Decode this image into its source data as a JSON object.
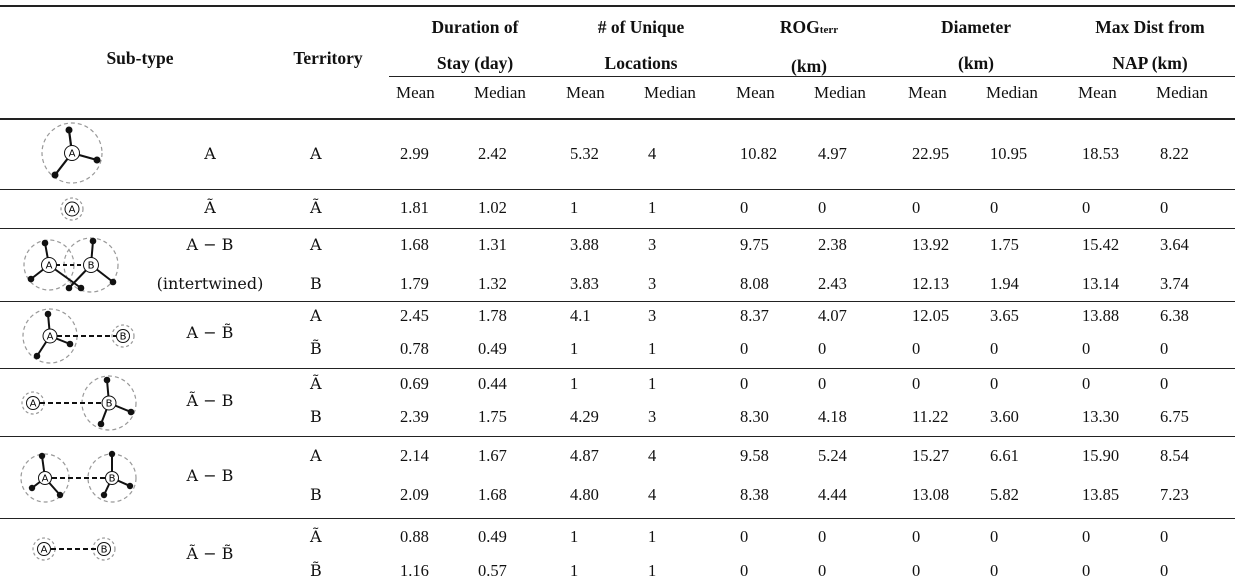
{
  "headers": {
    "subtype": "Sub-type",
    "territory": "Territory",
    "groups": [
      {
        "line1": "Duration of",
        "line2": "Stay (day)"
      },
      {
        "line1": "# of Unique",
        "line2": "Locations"
      },
      {
        "line1": "ROG",
        "line1_sub": "terr",
        "line2": "(km)"
      },
      {
        "line1": "Diameter",
        "line2": "(km)"
      },
      {
        "line1": "Max Dist from",
        "line2": "NAP (km)"
      }
    ],
    "mean": "Mean",
    "median": "Median"
  },
  "groups": [
    {
      "subtype": "A",
      "subtype2": "",
      "rows": [
        {
          "territory": "A",
          "values": [
            "2.99",
            "2.42",
            "5.32",
            "4",
            "10.82",
            "4.97",
            "22.95",
            "10.95",
            "18.53",
            "8.22"
          ]
        }
      ]
    },
    {
      "subtype": "Ã",
      "subtype2": "",
      "rows": [
        {
          "territory": "Ã",
          "values": [
            "1.81",
            "1.02",
            "1",
            "1",
            "0",
            "0",
            "0",
            "0",
            "0",
            "0"
          ]
        }
      ]
    },
    {
      "subtype": "A − B",
      "subtype2": "(intertwined)",
      "rows": [
        {
          "territory": "A",
          "values": [
            "1.68",
            "1.31",
            "3.88",
            "3",
            "9.75",
            "2.38",
            "13.92",
            "1.75",
            "15.42",
            "3.64"
          ]
        },
        {
          "territory": "B",
          "values": [
            "1.79",
            "1.32",
            "3.83",
            "3",
            "8.08",
            "2.43",
            "12.13",
            "1.94",
            "13.14",
            "3.74"
          ]
        }
      ]
    },
    {
      "subtype": "A − B̃",
      "subtype2": "",
      "rows": [
        {
          "territory": "A",
          "values": [
            "2.45",
            "1.78",
            "4.1",
            "3",
            "8.37",
            "4.07",
            "12.05",
            "3.65",
            "13.88",
            "6.38"
          ]
        },
        {
          "territory": "B̃",
          "values": [
            "0.78",
            "0.49",
            "1",
            "1",
            "0",
            "0",
            "0",
            "0",
            "0",
            "0"
          ]
        }
      ]
    },
    {
      "subtype": "Ã − B",
      "subtype2": "",
      "rows": [
        {
          "territory": "Ã",
          "values": [
            "0.69",
            "0.44",
            "1",
            "1",
            "0",
            "0",
            "0",
            "0",
            "0",
            "0"
          ]
        },
        {
          "territory": "B",
          "values": [
            "2.39",
            "1.75",
            "4.29",
            "3",
            "8.30",
            "4.18",
            "11.22",
            "3.60",
            "13.30",
            "6.75"
          ]
        }
      ]
    },
    {
      "subtype": "A − B",
      "subtype2": "",
      "rows": [
        {
          "territory": "A",
          "values": [
            "2.14",
            "1.67",
            "4.87",
            "4",
            "9.58",
            "5.24",
            "15.27",
            "6.61",
            "15.90",
            "8.54"
          ]
        },
        {
          "territory": "B",
          "values": [
            "2.09",
            "1.68",
            "4.80",
            "4",
            "8.38",
            "4.44",
            "13.08",
            "5.82",
            "13.85",
            "7.23"
          ]
        }
      ]
    },
    {
      "subtype": "Ã − B̃",
      "subtype2": "",
      "rows": [
        {
          "territory": "Ã",
          "values": [
            "0.88",
            "0.49",
            "1",
            "1",
            "0",
            "0",
            "0",
            "0",
            "0",
            "0"
          ]
        },
        {
          "territory": "B̃",
          "values": [
            "1.16",
            "0.57",
            "1",
            "1",
            "0",
            "0",
            "0",
            "0",
            "0",
            "0"
          ]
        }
      ]
    }
  ],
  "icon_labels": {
    "a": "A",
    "b": "B"
  },
  "icons": [
    "single-territory-star-icon",
    "single-point-icon",
    "intertwined-territories-icon",
    "territory-with-point-icon",
    "point-with-territory-icon",
    "two-territories-icon",
    "two-points-icon"
  ]
}
